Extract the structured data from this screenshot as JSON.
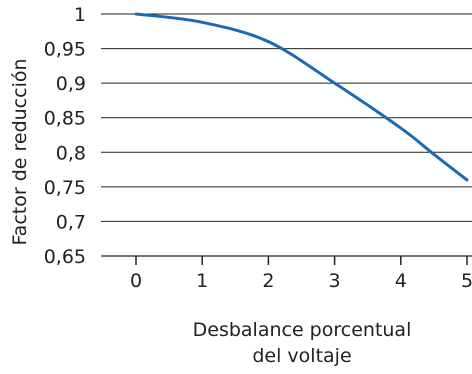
{
  "chart_data": {
    "type": "line",
    "title": "",
    "xlabel": [
      "Desbalance porcentual",
      "del voltaje"
    ],
    "ylabel": "Factor de reducción",
    "xlim": [
      -0.5,
      5
    ],
    "ylim": [
      0.65,
      1
    ],
    "xticks": [
      0,
      1,
      2,
      3,
      4,
      5
    ],
    "xtick_labels": [
      "0",
      "1",
      "2",
      "3",
      "4",
      "5"
    ],
    "yticks": [
      0.65,
      0.7,
      0.75,
      0.8,
      0.85,
      0.9,
      0.95,
      1
    ],
    "ytick_labels": [
      "0,65",
      "0,7",
      "0,75",
      "0,8",
      "0,85",
      "0,9",
      "0,95",
      "1"
    ],
    "grid": "horizontal",
    "series": [
      {
        "x": [
          0,
          1,
          2,
          3,
          4,
          4.5,
          5
        ],
        "y": [
          1.0,
          0.988,
          0.96,
          0.9,
          0.835,
          0.797,
          0.76
        ]
      }
    ],
    "colors": {
      "line": "#1a6bb3",
      "grid": "#222222"
    }
  }
}
